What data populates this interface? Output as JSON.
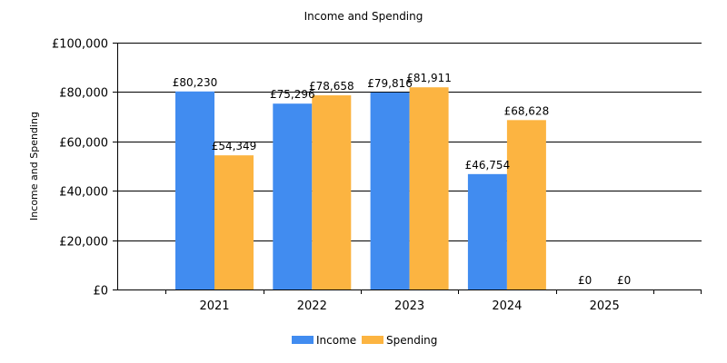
{
  "chart_data": {
    "type": "bar",
    "title": "Income and Spending",
    "xlabel": "",
    "ylabel": "Income and Spending",
    "categories": [
      "2021",
      "2022",
      "2023",
      "2024",
      "2025"
    ],
    "series": [
      {
        "name": "Income",
        "color": "#418CF0",
        "values": [
          80230,
          75296,
          79816,
          46754,
          0
        ],
        "labels": [
          "£80,230",
          "£75,296",
          "£79,816",
          "£46,754",
          "£0"
        ]
      },
      {
        "name": "Spending",
        "color": "#FCB441",
        "values": [
          54349,
          78658,
          81911,
          68628,
          0
        ],
        "labels": [
          "£54,349",
          "£78,658",
          "£81,911",
          "£68,628",
          "£0"
        ]
      }
    ],
    "ylim": [
      0,
      100000
    ],
    "yticks": [
      0,
      20000,
      40000,
      60000,
      80000,
      100000
    ],
    "ytick_labels": [
      "£0",
      "£20,000",
      "£40,000",
      "£60,000",
      "£80,000",
      "£100,000"
    ],
    "grid": true,
    "legend_position": "bottom-center"
  }
}
